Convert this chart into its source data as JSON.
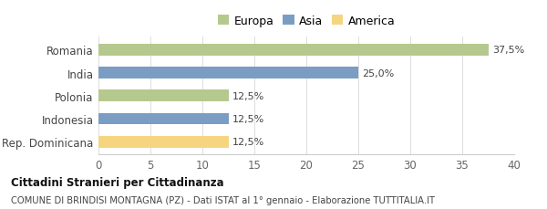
{
  "categories": [
    "Romania",
    "India",
    "Polonia",
    "Indonesia",
    "Rep. Dominicana"
  ],
  "values": [
    37.5,
    25.0,
    12.5,
    12.5,
    12.5
  ],
  "labels": [
    "37,5%",
    "25,0%",
    "12,5%",
    "12,5%",
    "12,5%"
  ],
  "colors": [
    "#b5c98e",
    "#7b9dc4",
    "#b5c98e",
    "#7b9dc4",
    "#f5d580"
  ],
  "legend_labels": [
    "Europa",
    "Asia",
    "America"
  ],
  "legend_colors": [
    "#b5c98e",
    "#7b9dc4",
    "#f5d580"
  ],
  "xlim": [
    0,
    40
  ],
  "xticks": [
    0,
    5,
    10,
    15,
    20,
    25,
    30,
    35,
    40
  ],
  "title_bold": "Cittadini Stranieri per Cittadinanza",
  "subtitle": "COMUNE DI BRINDISI MONTAGNA (PZ) - Dati ISTAT al 1° gennaio - Elaborazione TUTTITALIA.IT",
  "background_color": "#ffffff",
  "bar_height": 0.5
}
